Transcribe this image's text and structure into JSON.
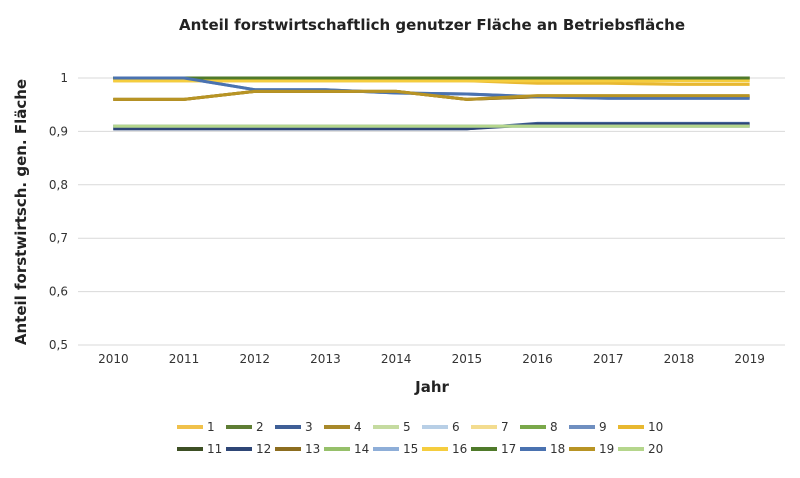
{
  "chart_data": {
    "type": "line",
    "title": "Anteil forstwirtschaftlich genutzer Fläche an Betriebsfläche",
    "xlabel": "Jahr",
    "ylabel": "Anteil forstwirtsch. gen. Fläche",
    "x": [
      "2010",
      "2011",
      "2012",
      "2013",
      "2014",
      "2015",
      "2016",
      "2017",
      "2018",
      "2019"
    ],
    "ylim": [
      0.5,
      1.0
    ],
    "yticks": [
      "0,5",
      "0,6",
      "0,7",
      "0,8",
      "0,9",
      "1"
    ],
    "grid": true,
    "legend_position": "bottom",
    "series": [
      {
        "name": "1",
        "color": "#f0c14b",
        "values": [
          0.995,
          0.995,
          0.995,
          0.995,
          0.995,
          0.995,
          0.995,
          0.995,
          0.995,
          0.995
        ]
      },
      {
        "name": "2",
        "color": "#5e7d34",
        "values": [
          1.0,
          1.0,
          1.0,
          1.0,
          1.0,
          1.0,
          1.0,
          1.0,
          1.0,
          1.0
        ]
      },
      {
        "name": "3",
        "color": "#3f5f96",
        "values": [
          0.905,
          0.905,
          0.905,
          0.905,
          0.905,
          0.905,
          0.915,
          0.915,
          0.915,
          0.915
        ]
      },
      {
        "name": "4",
        "color": "#a8892a",
        "values": [
          0.96,
          0.96,
          0.975,
          0.975,
          0.975,
          0.96,
          0.965,
          0.965,
          0.965,
          0.965
        ]
      },
      {
        "name": "5",
        "color": "#c5dba0",
        "values": [
          0.91,
          0.91,
          0.91,
          0.91,
          0.91,
          0.91,
          0.91,
          0.91,
          0.91,
          0.91
        ]
      },
      {
        "name": "6",
        "color": "#b8cfe6",
        "values": [
          0.91,
          0.91,
          0.91,
          0.91,
          0.91,
          0.91,
          0.91,
          0.91,
          0.91,
          0.91
        ]
      },
      {
        "name": "7",
        "color": "#f3dc8f",
        "values": [
          0.995,
          0.995,
          0.995,
          0.995,
          0.995,
          0.995,
          0.995,
          0.995,
          0.995,
          0.995
        ]
      },
      {
        "name": "8",
        "color": "#7aa84a",
        "values": [
          1.0,
          1.0,
          1.0,
          1.0,
          1.0,
          1.0,
          1.0,
          1.0,
          1.0,
          1.0
        ]
      },
      {
        "name": "9",
        "color": "#6f8fc0",
        "values": [
          1.0,
          1.0,
          0.978,
          0.978,
          0.972,
          0.97,
          0.965,
          0.962,
          0.962,
          0.962
        ]
      },
      {
        "name": "10",
        "color": "#e8b830",
        "values": [
          0.995,
          0.995,
          0.995,
          0.995,
          0.995,
          0.995,
          0.99,
          0.99,
          0.988,
          0.988
        ]
      },
      {
        "name": "11",
        "color": "#3d4f24",
        "values": [
          1.0,
          1.0,
          1.0,
          1.0,
          1.0,
          1.0,
          1.0,
          1.0,
          1.0,
          1.0
        ]
      },
      {
        "name": "12",
        "color": "#2e4676",
        "values": [
          0.905,
          0.905,
          0.905,
          0.905,
          0.905,
          0.905,
          0.913,
          0.913,
          0.913,
          0.913
        ]
      },
      {
        "name": "13",
        "color": "#8c6d1f",
        "values": [
          0.96,
          0.96,
          0.975,
          0.975,
          0.975,
          0.96,
          0.965,
          0.965,
          0.965,
          0.965
        ]
      },
      {
        "name": "14",
        "color": "#96c06a",
        "values": [
          0.91,
          0.91,
          0.91,
          0.91,
          0.91,
          0.91,
          0.91,
          0.91,
          0.91,
          0.91
        ]
      },
      {
        "name": "15",
        "color": "#8eaed8",
        "values": [
          0.91,
          0.91,
          0.91,
          0.91,
          0.91,
          0.91,
          0.91,
          0.91,
          0.91,
          0.91
        ]
      },
      {
        "name": "16",
        "color": "#f5cd3e",
        "values": [
          0.995,
          0.995,
          0.995,
          0.995,
          0.995,
          0.995,
          0.995,
          0.995,
          0.995,
          0.995
        ]
      },
      {
        "name": "17",
        "color": "#4f7a2a",
        "values": [
          1.0,
          1.0,
          1.0,
          1.0,
          1.0,
          1.0,
          1.0,
          1.0,
          1.0,
          1.0
        ]
      },
      {
        "name": "18",
        "color": "#4a72b0",
        "values": [
          1.0,
          1.0,
          0.978,
          0.978,
          0.972,
          0.97,
          0.965,
          0.962,
          0.962,
          0.962
        ]
      },
      {
        "name": "19",
        "color": "#b89424",
        "values": [
          0.96,
          0.96,
          0.975,
          0.975,
          0.975,
          0.96,
          0.967,
          0.967,
          0.967,
          0.967
        ]
      },
      {
        "name": "20",
        "color": "#b5d68c",
        "values": [
          0.91,
          0.91,
          0.91,
          0.91,
          0.91,
          0.91,
          0.91,
          0.91,
          0.91,
          0.91
        ]
      }
    ]
  }
}
